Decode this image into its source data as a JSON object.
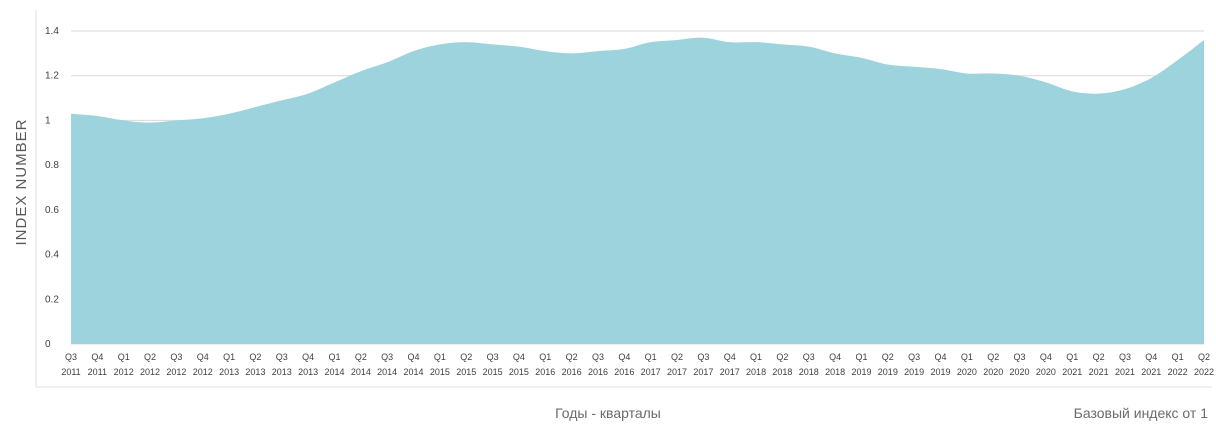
{
  "chart_data": {
    "type": "area",
    "xlabel": "Годы - кварталы",
    "ylabel": "INDEX NUMBER",
    "note": "Базовый индекс от 1",
    "ylim": [
      0,
      1.4
    ],
    "yticks": [
      "0",
      "0.2",
      "0.4",
      "0.6",
      "0.8",
      "1",
      "1.2",
      "1.4"
    ],
    "grid": true,
    "color": "#9dd3dc",
    "x": [
      {
        "q": "Q3",
        "y": "2011"
      },
      {
        "q": "Q4",
        "y": "2011"
      },
      {
        "q": "Q1",
        "y": "2012"
      },
      {
        "q": "Q2",
        "y": "2012"
      },
      {
        "q": "Q3",
        "y": "2012"
      },
      {
        "q": "Q4",
        "y": "2012"
      },
      {
        "q": "Q1",
        "y": "2013"
      },
      {
        "q": "Q2",
        "y": "2013"
      },
      {
        "q": "Q3",
        "y": "2013"
      },
      {
        "q": "Q4",
        "y": "2013"
      },
      {
        "q": "Q1",
        "y": "2014"
      },
      {
        "q": "Q2",
        "y": "2014"
      },
      {
        "q": "Q3",
        "y": "2014"
      },
      {
        "q": "Q4",
        "y": "2014"
      },
      {
        "q": "Q1",
        "y": "2015"
      },
      {
        "q": "Q2",
        "y": "2015"
      },
      {
        "q": "Q3",
        "y": "2015"
      },
      {
        "q": "Q4",
        "y": "2015"
      },
      {
        "q": "Q1",
        "y": "2016"
      },
      {
        "q": "Q2",
        "y": "2016"
      },
      {
        "q": "Q3",
        "y": "2016"
      },
      {
        "q": "Q4",
        "y": "2016"
      },
      {
        "q": "Q1",
        "y": "2017"
      },
      {
        "q": "Q2",
        "y": "2017"
      },
      {
        "q": "Q3",
        "y": "2017"
      },
      {
        "q": "Q4",
        "y": "2017"
      },
      {
        "q": "Q1",
        "y": "2018"
      },
      {
        "q": "Q2",
        "y": "2018"
      },
      {
        "q": "Q3",
        "y": "2018"
      },
      {
        "q": "Q4",
        "y": "2018"
      },
      {
        "q": "Q1",
        "y": "2019"
      },
      {
        "q": "Q2",
        "y": "2019"
      },
      {
        "q": "Q3",
        "y": "2019"
      },
      {
        "q": "Q4",
        "y": "2019"
      },
      {
        "q": "Q1",
        "y": "2020"
      },
      {
        "q": "Q2",
        "y": "2020"
      },
      {
        "q": "Q3",
        "y": "2020"
      },
      {
        "q": "Q4",
        "y": "2020"
      },
      {
        "q": "Q1",
        "y": "2021"
      },
      {
        "q": "Q2",
        "y": "2021"
      },
      {
        "q": "Q3",
        "y": "2021"
      },
      {
        "q": "Q4",
        "y": "2021"
      },
      {
        "q": "Q1",
        "y": "2022"
      },
      {
        "q": "Q2",
        "y": "2022"
      }
    ],
    "values": [
      1.03,
      1.02,
      1.0,
      0.99,
      1.0,
      1.01,
      1.03,
      1.06,
      1.09,
      1.12,
      1.17,
      1.22,
      1.26,
      1.31,
      1.34,
      1.35,
      1.34,
      1.33,
      1.31,
      1.3,
      1.31,
      1.32,
      1.35,
      1.36,
      1.37,
      1.35,
      1.35,
      1.34,
      1.33,
      1.3,
      1.28,
      1.25,
      1.24,
      1.23,
      1.21,
      1.21,
      1.2,
      1.17,
      1.13,
      1.12,
      1.14,
      1.19,
      1.27,
      1.36
    ]
  }
}
